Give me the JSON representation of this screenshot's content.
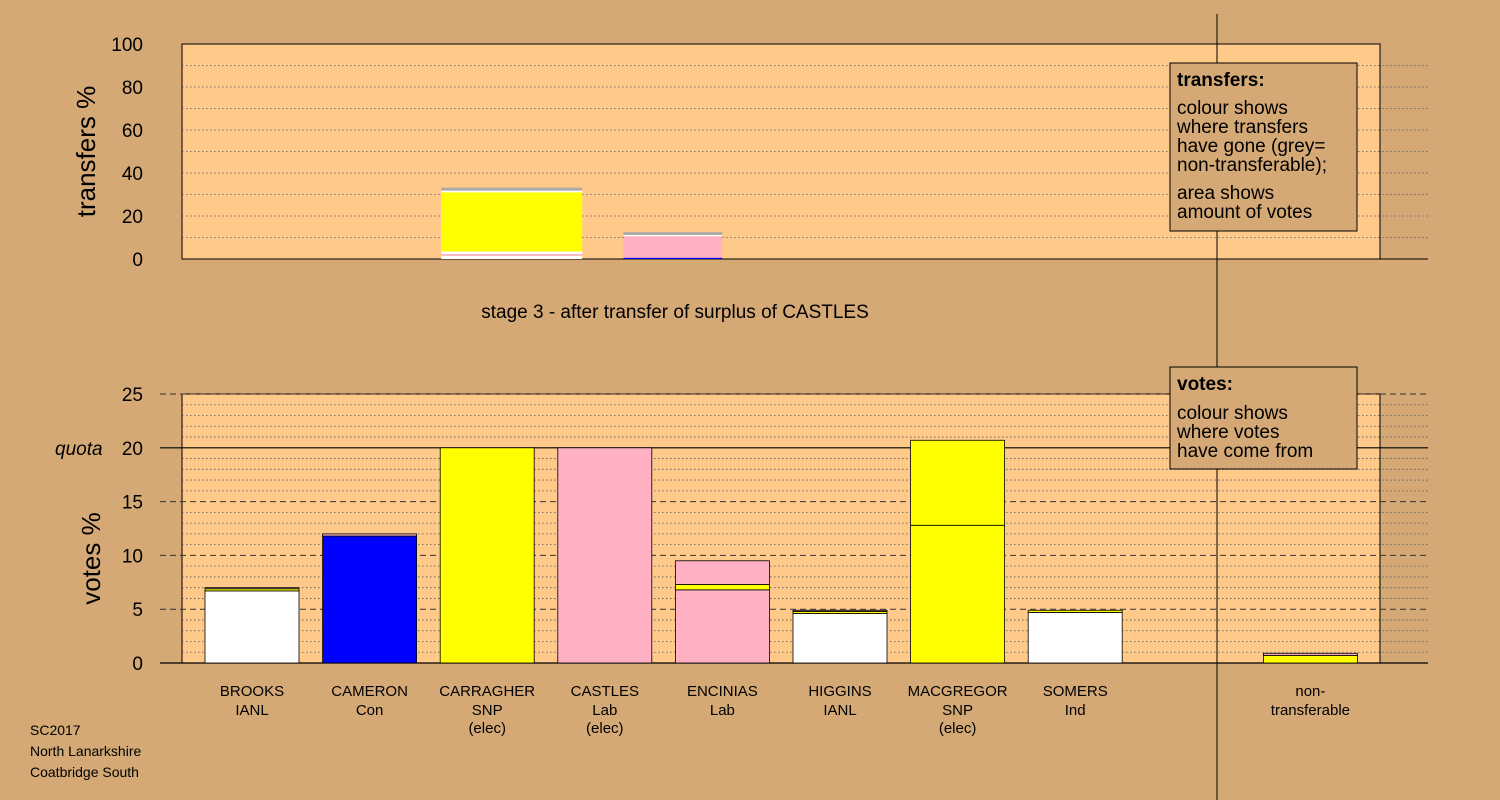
{
  "colors": {
    "page_bg": "#d4a976",
    "plot_bg": "#ffc98a",
    "party": {
      "IANL": "#ffffff",
      "Con": "#0000ff",
      "SNP": "#ffff00",
      "Lab": "#ffb1c3",
      "Ind": "#ffffff",
      "non": "#aaaaaa"
    }
  },
  "chart_data": [
    {
      "type": "bar",
      "panel": "transfers",
      "ylabel": "transfers %",
      "ylim": [
        0,
        100
      ],
      "yticks": [
        0,
        20,
        40,
        60,
        80,
        100
      ],
      "caption": "stage 3 - after transfer of surplus of CASTLES",
      "legend": {
        "title": "transfers:",
        "lines": [
          "colour shows",
          "where transfers",
          "have gone (grey=",
          "non-transferable);",
          "area shows",
          "amount of votes"
        ]
      },
      "bars": [
        {
          "slot": 2,
          "width_factor": 1.5,
          "segments": [
            {
              "party": "IANL",
              "value": 1.5
            },
            {
              "party": "Lab",
              "value": 0.8
            },
            {
              "party": "IANL",
              "value": 1.2
            },
            {
              "party": "SNP",
              "value": 27.5
            },
            {
              "party": "IANL",
              "value": 0.8
            },
            {
              "party": "non",
              "value": 1.4
            }
          ]
        },
        {
          "slot": 3.55,
          "width_factor": 1.05,
          "segments": [
            {
              "party": "Con",
              "value": 0.6
            },
            {
              "party": "Lab",
              "value": 10.0
            },
            {
              "party": "IANL",
              "value": 0.6
            },
            {
              "party": "non",
              "value": 1.3
            }
          ]
        }
      ]
    },
    {
      "type": "bar",
      "panel": "votes",
      "ylabel": "votes %",
      "ylim": [
        0,
        25
      ],
      "yticks": [
        0,
        5,
        10,
        15,
        20,
        25
      ],
      "quota": {
        "value": 20,
        "label": "quota"
      },
      "legend": {
        "title": "votes:",
        "lines": [
          "colour shows",
          "where votes",
          "have come from"
        ]
      },
      "candidates": [
        {
          "name": "BROOKS",
          "party": "IANL",
          "note": "",
          "segments": [
            {
              "party": "IANL",
              "value": 6.7
            },
            {
              "party": "SNP",
              "value": 0.2
            },
            {
              "party": "Lab",
              "value": 0.1
            }
          ]
        },
        {
          "name": "CAMERON",
          "party": "Con",
          "note": "",
          "segments": [
            {
              "party": "Con",
              "value": 11.8
            },
            {
              "party": "Lab",
              "value": 0.2
            }
          ]
        },
        {
          "name": "CARRAGHER",
          "party": "SNP",
          "note": "(elec)",
          "segments": [
            {
              "party": "SNP",
              "value": 20.0
            }
          ]
        },
        {
          "name": "CASTLES",
          "party": "Lab",
          "note": "(elec)",
          "segments": [
            {
              "party": "Lab",
              "value": 20.0
            }
          ]
        },
        {
          "name": "ENCINIAS",
          "party": "Lab",
          "note": "",
          "segments": [
            {
              "party": "Lab",
              "value": 6.8
            },
            {
              "party": "SNP",
              "value": 0.5
            },
            {
              "party": "Lab",
              "value": 2.2
            }
          ]
        },
        {
          "name": "HIGGINS",
          "party": "IANL",
          "note": "",
          "segments": [
            {
              "party": "IANL",
              "value": 4.6
            },
            {
              "party": "SNP",
              "value": 0.2
            },
            {
              "party": "Lab",
              "value": 0.1
            }
          ]
        },
        {
          "name": "MACGREGOR",
          "party": "SNP",
          "note": "(elec)",
          "segments": [
            {
              "party": "SNP",
              "value": 12.8
            },
            {
              "party": "SNP",
              "value": 7.9
            }
          ]
        },
        {
          "name": "SOMERS",
          "party": "Ind",
          "note": "",
          "segments": [
            {
              "party": "Ind",
              "value": 4.7
            },
            {
              "party": "SNP",
              "value": 0.2
            }
          ]
        },
        {
          "name": "non-",
          "party": "transferable",
          "note": "",
          "slot": 9,
          "segments": [
            {
              "party": "SNP",
              "value": 0.7
            },
            {
              "party": "Lab",
              "value": 0.2
            }
          ]
        }
      ]
    }
  ],
  "footer": {
    "line1": "SC2017",
    "line2": "North Lanarkshire",
    "line3": "Coatbridge South"
  }
}
